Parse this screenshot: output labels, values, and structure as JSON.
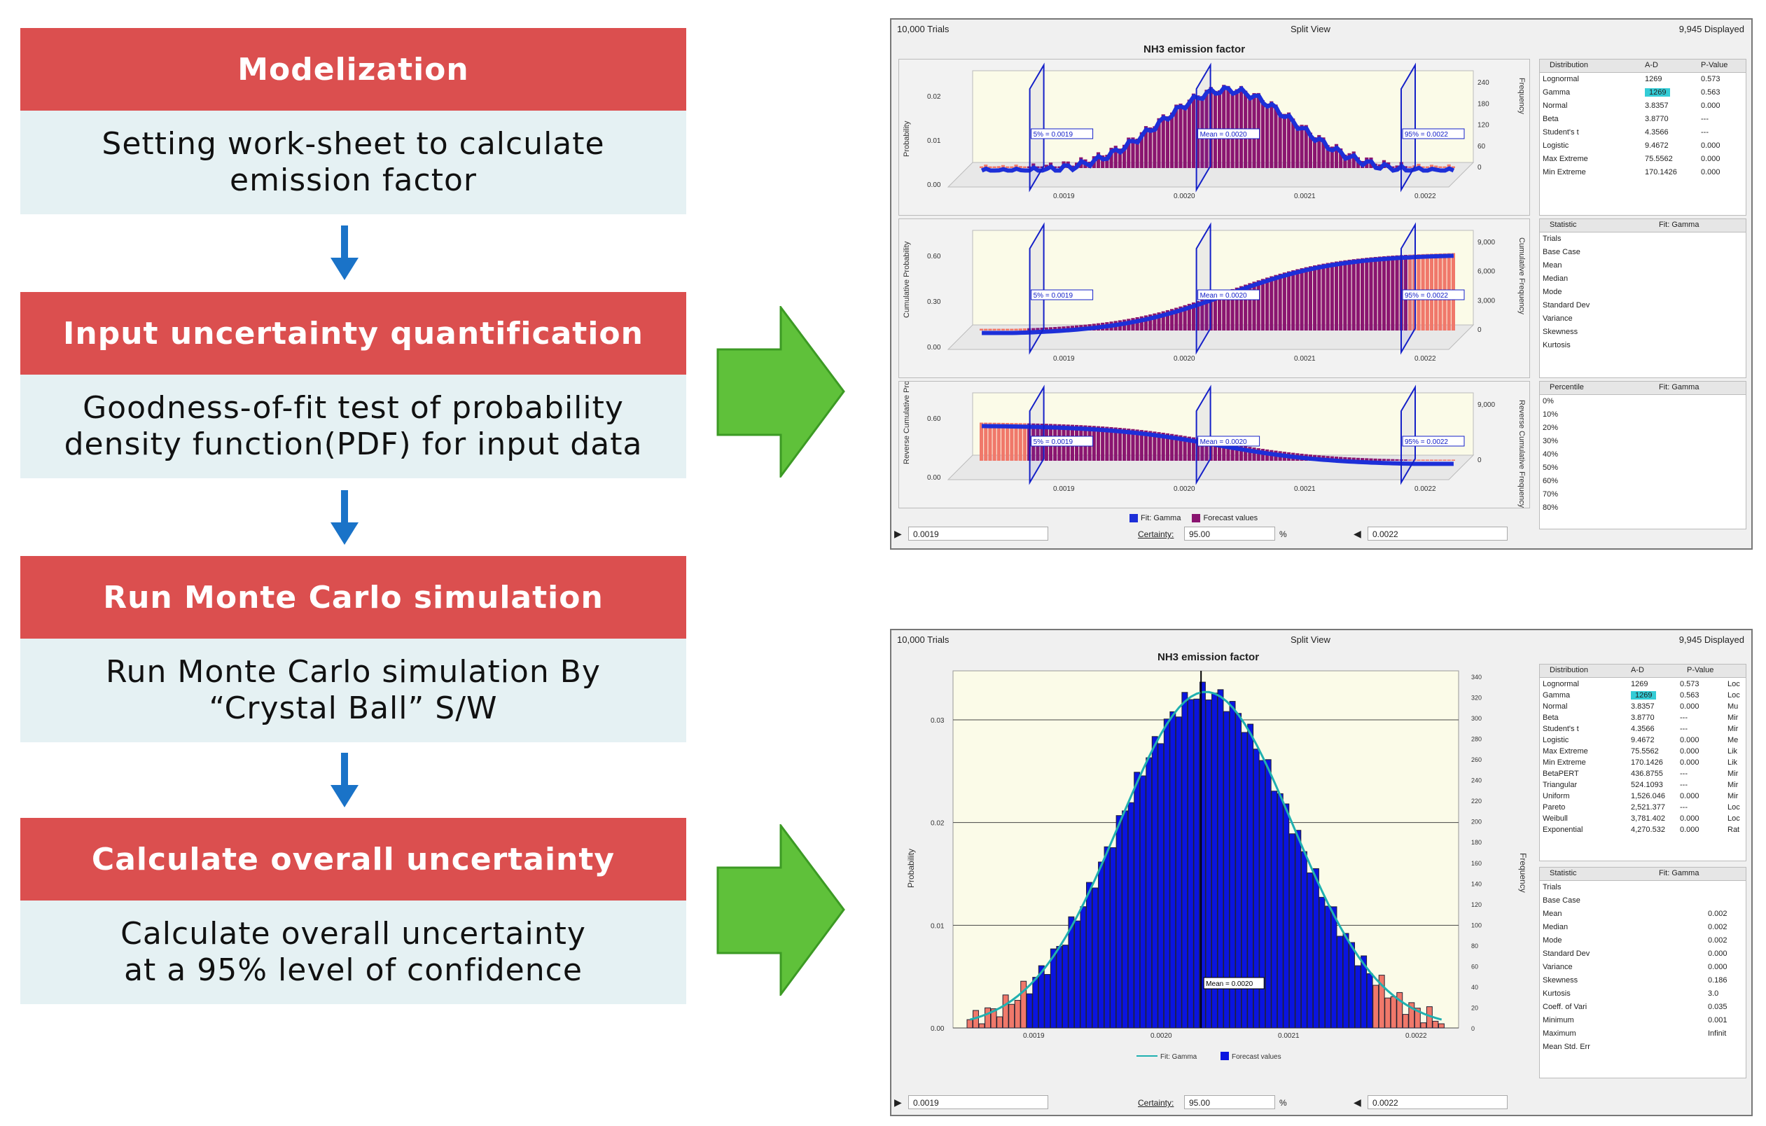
{
  "steps": [
    {
      "title": "Modelization",
      "body": [
        "Setting work-sheet to calculate",
        "emission factor"
      ]
    },
    {
      "title": "Input uncertainty quantification",
      "body": [
        "Goodness-of-fit test of probability",
        "density function(PDF) for input data"
      ]
    },
    {
      "title": "Run Monte Carlo simulation",
      "body": [
        "Run Monte Carlo simulation By",
        "“Crystal Ball” S/W"
      ]
    },
    {
      "title": "Calculate overall uncertainty",
      "body": [
        "Calculate overall uncertainty",
        "at a 95% level of confidence"
      ]
    }
  ],
  "colors": {
    "header": "#db4f4f",
    "body_bg": "#e5f1f3",
    "arrow_blue": "#1a73c8",
    "arrow_green": "#5fc13a",
    "bar_purple": "#8a1570",
    "bar_salmon": "#f0786a",
    "bar_blue": "#0a14e0",
    "fit_line": "#1d2fd8",
    "fit_teal": "#20b0b0"
  },
  "panel1": {
    "trials": "10,000 Trials",
    "view": "Split View",
    "displayed": "9,945 Displayed",
    "title": "NH3 emission factor",
    "top": {
      "y_label": "Probability",
      "y_right_label": "Frequency",
      "y_ticks": [
        "0.02",
        "0.01",
        "0.00"
      ],
      "y_right_ticks": [
        "240",
        "180",
        "120",
        "60",
        "0"
      ],
      "x_ticks": [
        "0.0019",
        "0.0020",
        "0.0021",
        "0.0022"
      ],
      "marks": [
        "5% = 0.0019",
        "Mean = 0.0020",
        "95% = 0.0022"
      ]
    },
    "mid": {
      "y_label": "Cumulative Probability",
      "y_right_label": "Cumulative Frequency",
      "y_ticks": [
        "0.60",
        "0.30",
        "0.00"
      ],
      "y_right_ticks": [
        "9,000",
        "6,000",
        "3,000",
        "0"
      ],
      "x_ticks": [
        "0.0019",
        "0.0020",
        "0.0021",
        "0.0022"
      ],
      "marks": [
        "5% = 0.0019",
        "Mean = 0.0020",
        "95% = 0.0022"
      ]
    },
    "bottom": {
      "y_label": "Reverse Cumulative Probability",
      "y_right_label": "Reverse Cumulative Frequency",
      "y_ticks": [
        "0.60",
        "0.00"
      ],
      "y_right_ticks": [
        "9,000",
        "0"
      ],
      "x_ticks": [
        "0.0019",
        "0.0020",
        "0.0021",
        "0.0022"
      ],
      "marks": [
        "5% = 0.0019",
        "Mean = 0.0020",
        "95% = 0.0022"
      ]
    },
    "legend": [
      "Fit: Gamma",
      "Forecast values"
    ],
    "dist_table": {
      "headers": [
        "Distribution",
        "A-D",
        "P-Value"
      ],
      "rows": [
        [
          "Lognormal",
          "1269",
          "0.573"
        ],
        [
          "Gamma",
          "1269",
          "0.563"
        ],
        [
          "Normal",
          "3.8357",
          "0.000"
        ],
        [
          "Beta",
          "3.8770",
          "---"
        ],
        [
          "Student's t",
          "4.3566",
          "---"
        ],
        [
          "Logistic",
          "9.4672",
          "0.000"
        ],
        [
          "Max Extreme",
          "75.5562",
          "0.000"
        ],
        [
          "Min Extreme",
          "170.1426",
          "0.000"
        ]
      ]
    },
    "stat_table": {
      "headers": [
        "Statistic",
        "Fit: Gamma"
      ],
      "rows": [
        "Trials",
        "Base Case",
        "Mean",
        "Median",
        "Mode",
        "Standard Dev",
        "Variance",
        "Skewness",
        "Kurtosis"
      ]
    },
    "pct_table": {
      "headers": [
        "Percentile",
        "Fit: Gamma"
      ],
      "rows": [
        "0%",
        "10%",
        "20%",
        "30%",
        "40%",
        "50%",
        "60%",
        "70%",
        "80%"
      ]
    },
    "bottom_bar": {
      "left": "0.0019",
      "certainty_label": "Certainty:",
      "certainty": "95.00",
      "pct": "%",
      "right": "0.0022"
    }
  },
  "panel2": {
    "trials": "10,000 Trials",
    "view": "Split View",
    "displayed": "9,945 Displayed",
    "title": "NH3 emission factor",
    "y_label": "Probability",
    "y_right_label": "Frequency",
    "y_ticks": [
      "0.03",
      "0.02",
      "0.01",
      "0.00"
    ],
    "y_right_ticks": [
      "340",
      "320",
      "300",
      "280",
      "260",
      "240",
      "220",
      "200",
      "180",
      "160",
      "140",
      "120",
      "100",
      "80",
      "60",
      "40",
      "20",
      "0"
    ],
    "x_ticks": [
      "0.0019",
      "0.0020",
      "0.0021",
      "0.0022"
    ],
    "mean_label": "Mean = 0.0020",
    "legend": [
      "Fit: Gamma",
      "Forecast values"
    ],
    "dist_table": {
      "headers": [
        "Distribution",
        "A-D",
        "P-Value"
      ],
      "rows": [
        [
          "Lognormal",
          "1269",
          "0.573",
          "Loc"
        ],
        [
          "Gamma",
          "1269",
          "0.563",
          "Loc"
        ],
        [
          "Normal",
          "3.8357",
          "0.000",
          "Mu"
        ],
        [
          "Beta",
          "3.8770",
          "---",
          "Mir"
        ],
        [
          "Student's t",
          "4.3566",
          "---",
          "Mir"
        ],
        [
          "Logistic",
          "9.4672",
          "0.000",
          "Me"
        ],
        [
          "Max Extreme",
          "75.5562",
          "0.000",
          "Lik"
        ],
        [
          "Min Extreme",
          "170.1426",
          "0.000",
          "Lik"
        ],
        [
          "BetaPERT",
          "436.8755",
          "---",
          "Mir"
        ],
        [
          "Triangular",
          "524.1093",
          "---",
          "Mir"
        ],
        [
          "Uniform",
          "1,526.046",
          "0.000",
          "Mir"
        ],
        [
          "Pareto",
          "2,521.377",
          "---",
          "Loc"
        ],
        [
          "Weibull",
          "3,781.402",
          "0.000",
          "Loc"
        ],
        [
          "Exponential",
          "4,270.532",
          "0.000",
          "Rat"
        ]
      ]
    },
    "stat_table": {
      "headers": [
        "Statistic",
        "Fit: Gamma"
      ],
      "rows": [
        [
          "Trials",
          ""
        ],
        [
          "Base Case",
          ""
        ],
        [
          "Mean",
          "0.002"
        ],
        [
          "Median",
          "0.002"
        ],
        [
          "Mode",
          "0.002"
        ],
        [
          "Standard Dev",
          "0.000"
        ],
        [
          "Variance",
          "0.000"
        ],
        [
          "Skewness",
          "0.186"
        ],
        [
          "Kurtosis",
          "3.0"
        ],
        [
          "Coeff. of Vari",
          "0.035"
        ],
        [
          "Minimum",
          "0.001"
        ],
        [
          "Maximum",
          "Infinit"
        ],
        [
          "Mean Std. Err",
          ""
        ]
      ]
    },
    "bottom_bar": {
      "left": "0.0019",
      "certainty_label": "Certainty:",
      "certainty": "95.00",
      "pct": "%",
      "right": "0.0022"
    }
  }
}
